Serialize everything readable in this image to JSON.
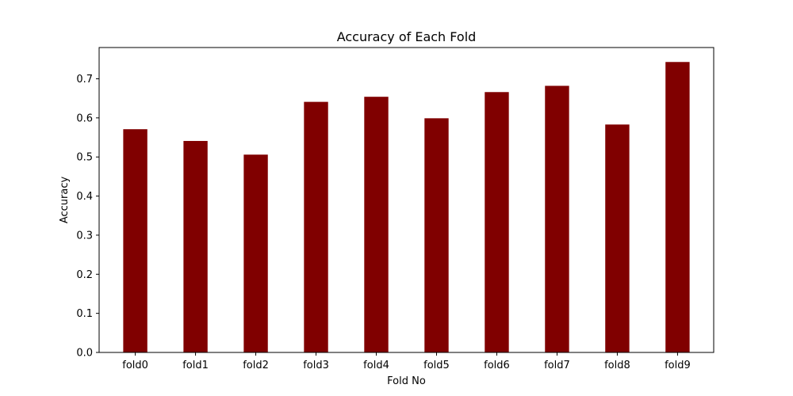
{
  "chart_data": {
    "type": "bar",
    "title": "Accuracy of Each Fold",
    "xlabel": "Fold No",
    "ylabel": "Accuracy",
    "categories": [
      "fold0",
      "fold1",
      "fold2",
      "fold3",
      "fold4",
      "fold5",
      "fold6",
      "fold7",
      "fold8",
      "fold9"
    ],
    "values": [
      0.571,
      0.541,
      0.506,
      0.641,
      0.654,
      0.599,
      0.666,
      0.682,
      0.583,
      0.743
    ],
    "ylim": [
      0,
      0.78
    ],
    "yticks": [
      0.0,
      0.1,
      0.2,
      0.3,
      0.4,
      0.5,
      0.6,
      0.7
    ],
    "ytick_labels": [
      "0.0",
      "0.1",
      "0.2",
      "0.3",
      "0.4",
      "0.5",
      "0.6",
      "0.7"
    ],
    "bar_color": "#800000",
    "grid": false,
    "legend": false
  }
}
